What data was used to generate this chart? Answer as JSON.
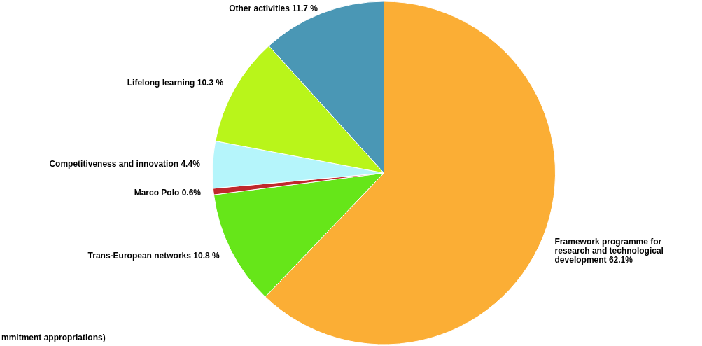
{
  "chart_data": {
    "type": "pie",
    "categories": [
      "Framework programme for research and technological development",
      "Trans-European networks",
      "Marco Polo",
      "Competitiveness and innovation",
      "Lifelong learning",
      "Other activities"
    ],
    "values": [
      62.1,
      10.8,
      0.6,
      4.4,
      10.3,
      11.7
    ],
    "colors": [
      "#fbae35",
      "#66e619",
      "#c0282d",
      "#b5f5fb",
      "#b9f51a",
      "#4a97b5"
    ],
    "value_labels": [
      "62.1%",
      "10.8 %",
      "0.6%",
      "4.4%",
      "10.3 %",
      "11.7 %"
    ],
    "annotations": [
      "mmitment appropriations)"
    ]
  }
}
